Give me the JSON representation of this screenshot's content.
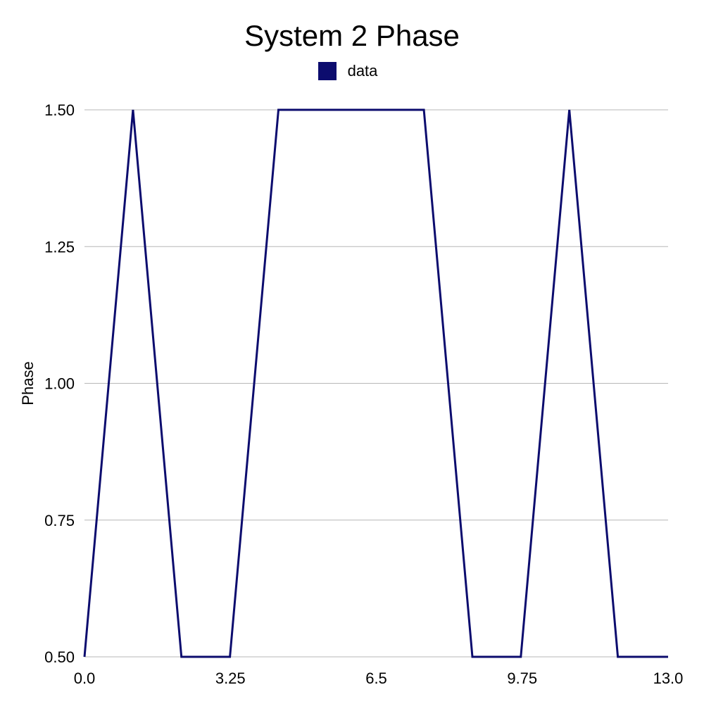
{
  "chart_data": {
    "type": "line",
    "title": "System 2 Phase",
    "xlabel": "",
    "ylabel": "Phase",
    "xlim": [
      0,
      13
    ],
    "ylim": [
      0.5,
      1.5
    ],
    "x_ticks": [
      "0.0",
      "3.25",
      "6.5",
      "9.75",
      "13.0"
    ],
    "x_tick_values": [
      0,
      3.25,
      6.5,
      9.75,
      13
    ],
    "y_ticks": [
      "0.50",
      "0.75",
      "1.00",
      "1.25",
      "1.50"
    ],
    "y_tick_values": [
      0.5,
      0.75,
      1.0,
      1.25,
      1.5
    ],
    "grid": true,
    "legend_position": "top-center",
    "series": [
      {
        "name": "data",
        "color": "#0c0c6e",
        "x": [
          0,
          1.08,
          2.16,
          3.24,
          4.32,
          5.4,
          6.48,
          7.56,
          8.64,
          9.72,
          10.8,
          11.88,
          12.96,
          13.0
        ],
        "y": [
          0.5,
          1.5,
          0.5,
          0.5,
          1.5,
          1.5,
          1.5,
          1.5,
          0.5,
          0.5,
          1.5,
          0.5,
          0.5,
          0.5
        ]
      }
    ]
  }
}
